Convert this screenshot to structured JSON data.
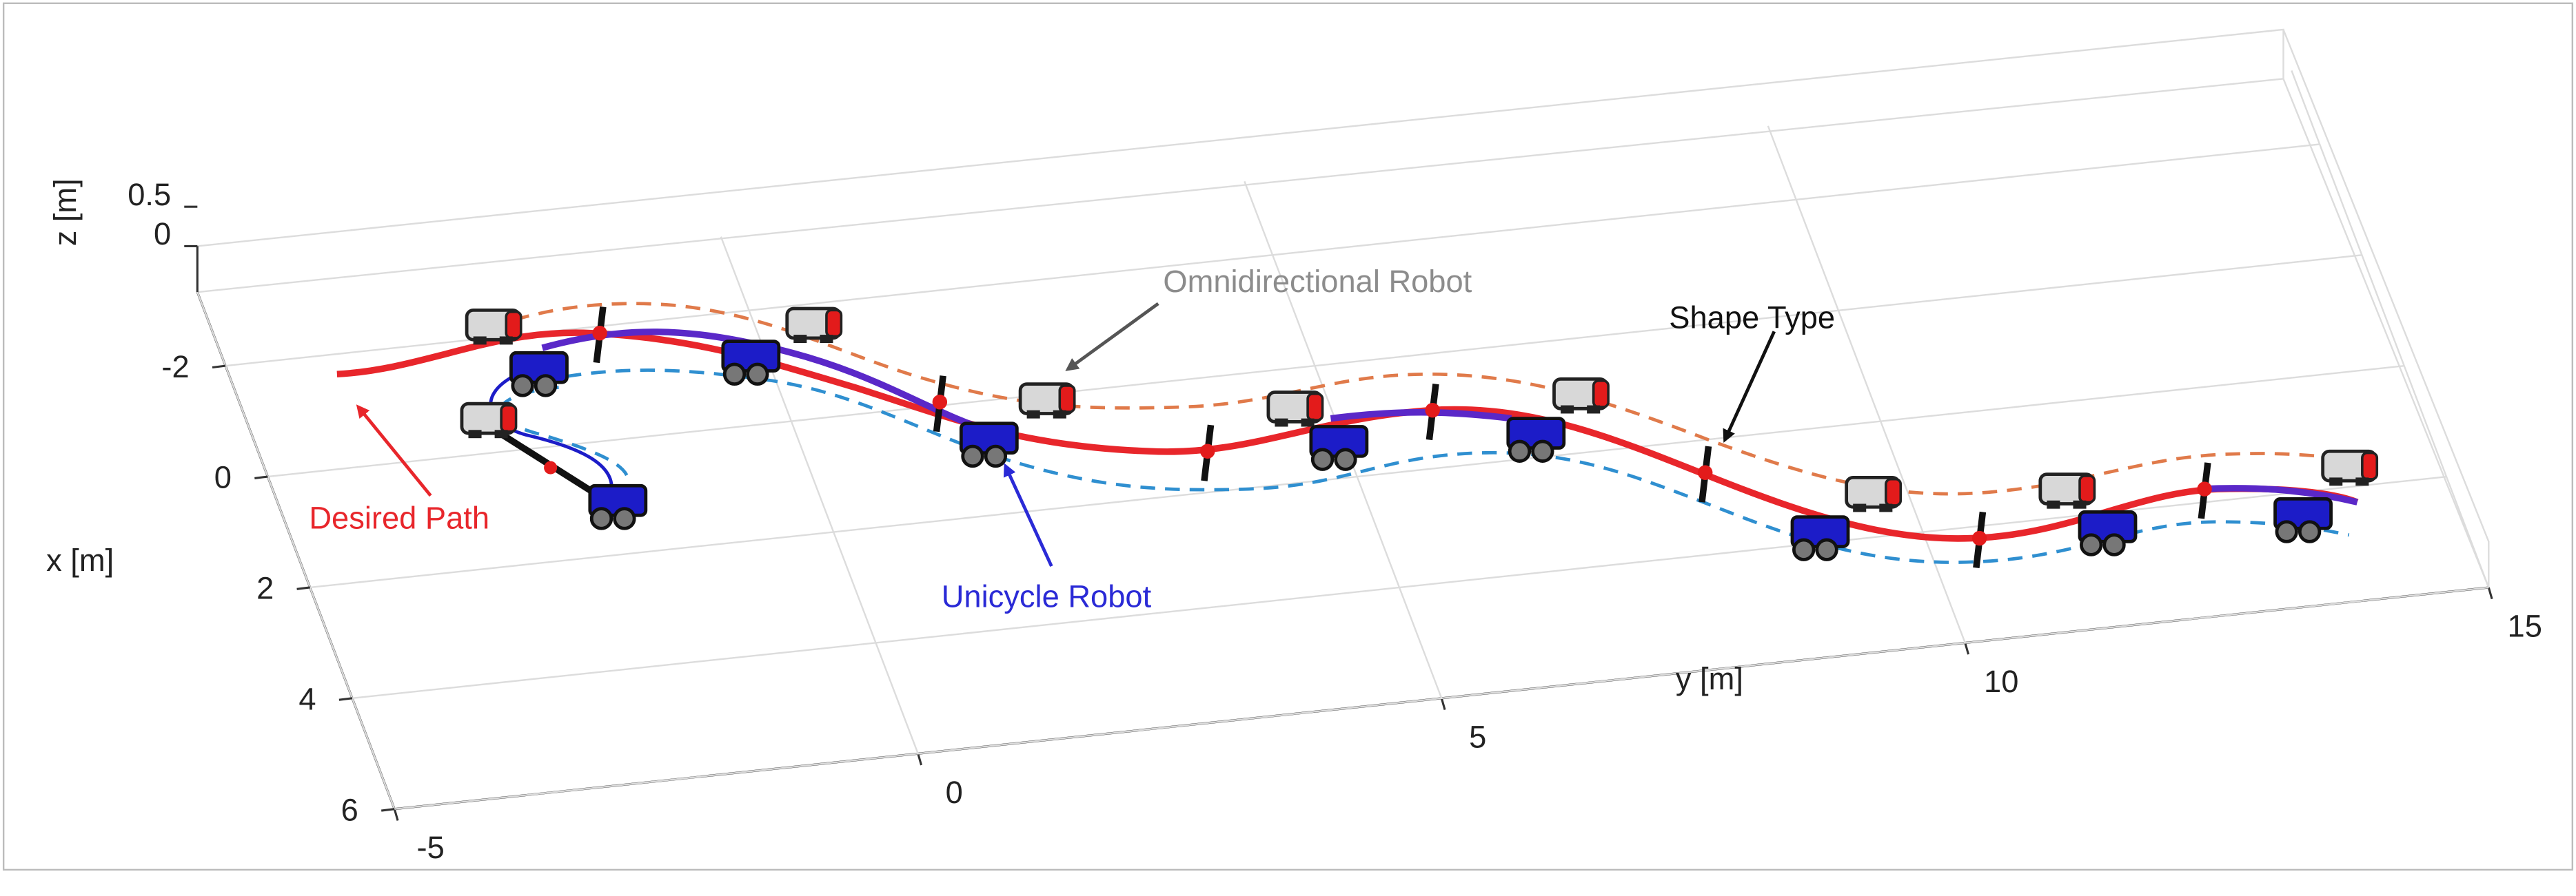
{
  "axes": {
    "x": {
      "label": "x [m]",
      "ticks": [
        -2,
        0,
        2,
        4,
        6
      ]
    },
    "y": {
      "label": "y [m]",
      "ticks": [
        -5,
        0,
        5,
        10,
        15
      ]
    },
    "z": {
      "label": "z [m]",
      "ticks": [
        0,
        0.5
      ]
    }
  },
  "annotations": [
    {
      "text": "Omnidirectional Robot",
      "color": "#8c8c8c"
    },
    {
      "text": "Shape Type",
      "color": "#111111"
    },
    {
      "text": "Desired Path",
      "color": "#e8262b"
    },
    {
      "text": "Unicycle Robot",
      "color": "#2a2ad6"
    }
  ]
}
